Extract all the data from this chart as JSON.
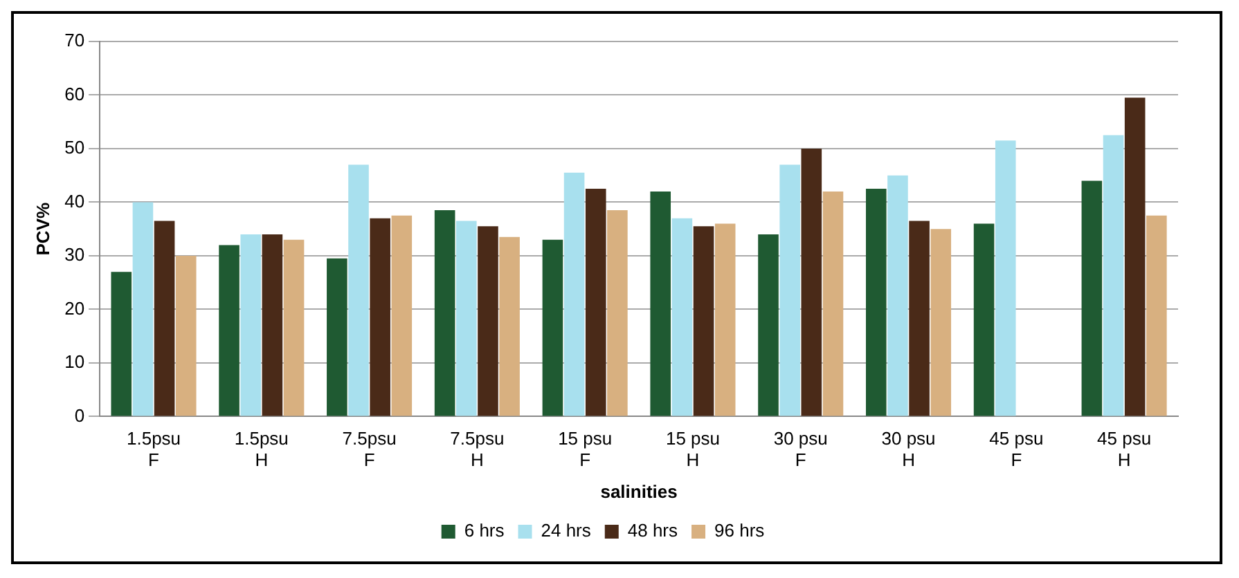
{
  "chart_data": {
    "type": "bar",
    "xlabel": "salinities",
    "ylabel": "PCV%",
    "categories": [
      "1.5psu F",
      "1.5psu H",
      "7.5psu F",
      "7.5psu H",
      "15 psu F",
      "15 psu H",
      "30 psu F",
      "30 psu H",
      "45 psu F",
      "45 psu H"
    ],
    "series": [
      {
        "name": "6 hrs",
        "color": "#1f5a32",
        "values": [
          27,
          32,
          29.5,
          38.5,
          33,
          42,
          34,
          42.5,
          36,
          44
        ]
      },
      {
        "name": "24 hrs",
        "color": "#a8e0ee",
        "values": [
          40,
          34,
          47,
          36.5,
          45.5,
          37,
          47,
          45,
          51.5,
          52.5
        ]
      },
      {
        "name": "48 hrs",
        "color": "#4a2a18",
        "values": [
          36.5,
          34,
          37,
          35.5,
          42.5,
          35.5,
          50,
          36.5,
          0,
          59.5
        ]
      },
      {
        "name": "96 hrs",
        "color": "#d8b080",
        "values": [
          30,
          33,
          37.5,
          33.5,
          38.5,
          36,
          42,
          35,
          0,
          37.5
        ]
      }
    ],
    "ylim": [
      0,
      70
    ],
    "yticks": [
      0,
      10,
      20,
      30,
      40,
      50,
      60,
      70
    ],
    "grid": "y",
    "legend": "bottom"
  }
}
